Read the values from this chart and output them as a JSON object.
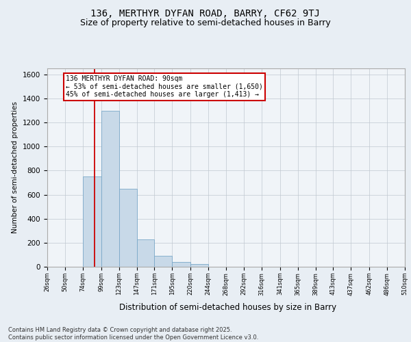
{
  "title": "136, MERTHYR DYFAN ROAD, BARRY, CF62 9TJ",
  "subtitle": "Size of property relative to semi-detached houses in Barry",
  "xlabel": "Distribution of semi-detached houses by size in Barry",
  "ylabel": "Number of semi-detached properties",
  "bin_labels": [
    "26sqm",
    "50sqm",
    "74sqm",
    "99sqm",
    "123sqm",
    "147sqm",
    "171sqm",
    "195sqm",
    "220sqm",
    "244sqm",
    "268sqm",
    "292sqm",
    "316sqm",
    "341sqm",
    "365sqm",
    "389sqm",
    "413sqm",
    "437sqm",
    "462sqm",
    "486sqm",
    "510sqm"
  ],
  "bin_edges": [
    26,
    50,
    74,
    99,
    123,
    147,
    171,
    195,
    220,
    244,
    268,
    292,
    316,
    341,
    365,
    389,
    413,
    437,
    462,
    486,
    510
  ],
  "bar_heights": [
    0,
    0,
    750,
    1300,
    650,
    225,
    90,
    40,
    20,
    0,
    0,
    0,
    0,
    0,
    0,
    0,
    0,
    0,
    0,
    0
  ],
  "bar_color": "#c8d9e8",
  "bar_edge_color": "#7aa8c8",
  "property_line_x": 90,
  "property_line_color": "#cc0000",
  "ylim": [
    0,
    1650
  ],
  "yticks": [
    0,
    200,
    400,
    600,
    800,
    1000,
    1200,
    1400,
    1600
  ],
  "annotation_text": "136 MERTHYR DYFAN ROAD: 90sqm\n← 53% of semi-detached houses are smaller (1,650)\n45% of semi-detached houses are larger (1,413) →",
  "annotation_box_color": "#cc0000",
  "footer_line1": "Contains HM Land Registry data © Crown copyright and database right 2025.",
  "footer_line2": "Contains public sector information licensed under the Open Government Licence v3.0.",
  "background_color": "#e8eef4",
  "plot_bg_color": "#f0f4f8",
  "grid_color": "#c0c8d0",
  "title_fontsize": 10,
  "subtitle_fontsize": 9
}
